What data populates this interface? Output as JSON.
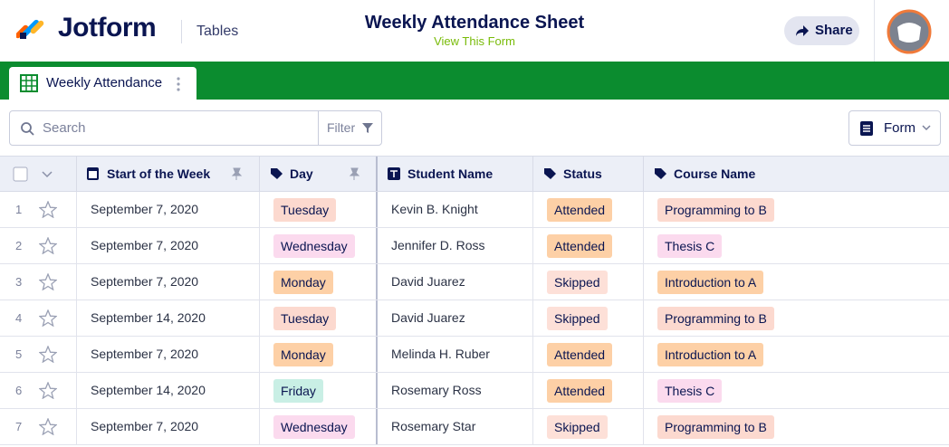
{
  "header": {
    "brand": "Jotform",
    "section": "Tables",
    "title": "Weekly Attendance Sheet",
    "link": "View This Form",
    "share": "Share"
  },
  "tab": {
    "label": "Weekly Attendance"
  },
  "toolbar": {
    "search_placeholder": "Search",
    "filter": "Filter",
    "form": "Form"
  },
  "table": {
    "columns": [
      "Start of the Week",
      "Day",
      "Student Name",
      "Status",
      "Course Name"
    ],
    "rows": [
      {
        "number": 1,
        "cells": [
          "September 7, 2020",
          {
            "text": "Tuesday",
            "color": "#fcd9cf"
          },
          "Kevin B. Knight",
          {
            "text": "Attended",
            "color": "#fdd0a6"
          },
          {
            "text": "Programming to B",
            "color": "#fcd9cf"
          }
        ]
      },
      {
        "number": 2,
        "cells": [
          "September 7, 2020",
          {
            "text": "Wednesday",
            "color": "#fbdaee"
          },
          "Jennifer D. Ross",
          {
            "text": "Attended",
            "color": "#fdd0a6"
          },
          {
            "text": "Thesis C",
            "color": "#fbdaee"
          }
        ]
      },
      {
        "number": 3,
        "cells": [
          "September 7, 2020",
          {
            "text": "Monday",
            "color": "#fdd0a6"
          },
          "David Juarez",
          {
            "text": "Skipped",
            "color": "#fde0d8"
          },
          {
            "text": "Introduction to A",
            "color": "#fdd0a6"
          }
        ]
      },
      {
        "number": 4,
        "cells": [
          "September 14, 2020",
          {
            "text": "Tuesday",
            "color": "#fcd9cf"
          },
          "David Juarez",
          {
            "text": "Skipped",
            "color": "#fde0d8"
          },
          {
            "text": "Programming to B",
            "color": "#fcd9cf"
          }
        ]
      },
      {
        "number": 5,
        "cells": [
          "September 7, 2020",
          {
            "text": "Monday",
            "color": "#fdd0a6"
          },
          "Melinda H. Ruber",
          {
            "text": "Attended",
            "color": "#fdd0a6"
          },
          {
            "text": "Introduction to A",
            "color": "#fdd0a6"
          }
        ]
      },
      {
        "number": 6,
        "cells": [
          "September 14, 2020",
          {
            "text": "Friday",
            "color": "#c9efe5"
          },
          "Rosemary Ross",
          {
            "text": "Attended",
            "color": "#fdd0a6"
          },
          {
            "text": "Thesis C",
            "color": "#fbdaee"
          }
        ]
      },
      {
        "number": 7,
        "cells": [
          "September 7, 2020",
          {
            "text": "Wednesday",
            "color": "#fbdaee"
          },
          "Rosemary Star",
          {
            "text": "Skipped",
            "color": "#fde0d8"
          },
          {
            "text": "Programming to B",
            "color": "#fcd9cf"
          }
        ]
      }
    ]
  }
}
